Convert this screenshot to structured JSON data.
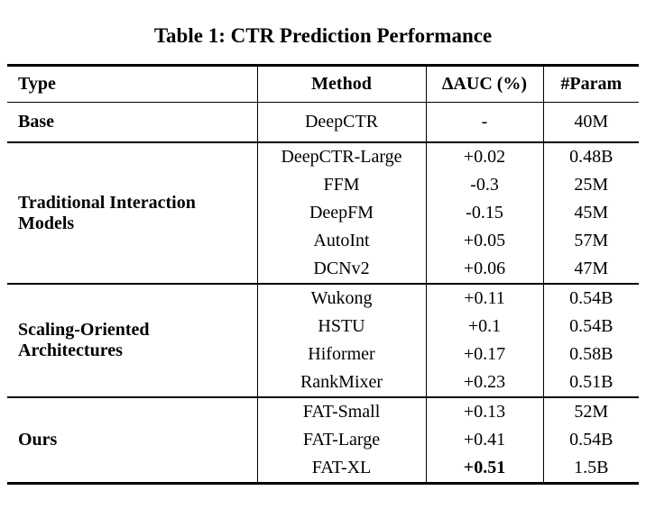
{
  "title": "Table 1: CTR Prediction Performance",
  "table": {
    "headers": [
      "Type",
      "Method",
      "ΔAUC (%)",
      "#Param"
    ],
    "sections": [
      {
        "type": "Base",
        "rows": [
          {
            "method": "DeepCTR",
            "auc": "-",
            "param": "40M"
          }
        ]
      },
      {
        "type": "Traditional Interaction Models",
        "rows": [
          {
            "method": "DeepCTR-Large",
            "auc": "+0.02",
            "param": "0.48B"
          },
          {
            "method": "FFM",
            "auc": "-0.3",
            "param": "25M"
          },
          {
            "method": "DeepFM",
            "auc": "-0.15",
            "param": "45M"
          },
          {
            "method": "AutoInt",
            "auc": "+0.05",
            "param": "57M"
          },
          {
            "method": "DCNv2",
            "auc": "+0.06",
            "param": "47M"
          }
        ]
      },
      {
        "type": "Scaling-Oriented Architectures",
        "rows": [
          {
            "method": "Wukong",
            "auc": "+0.11",
            "param": "0.54B"
          },
          {
            "method": "HSTU",
            "auc": "+0.1",
            "param": "0.54B"
          },
          {
            "method": "Hiformer",
            "auc": "+0.17",
            "param": "0.58B"
          },
          {
            "method": "RankMixer",
            "auc": "+0.23",
            "param": "0.51B"
          }
        ]
      },
      {
        "type": "Ours",
        "rows": [
          {
            "method": "FAT-Small",
            "auc": "+0.13",
            "param": "52M"
          },
          {
            "method": "FAT-Large",
            "auc": "+0.41",
            "param": "0.54B"
          },
          {
            "method": "FAT-XL",
            "auc": "+0.51",
            "auc_bold": true,
            "param": "1.5B"
          }
        ]
      }
    ]
  }
}
